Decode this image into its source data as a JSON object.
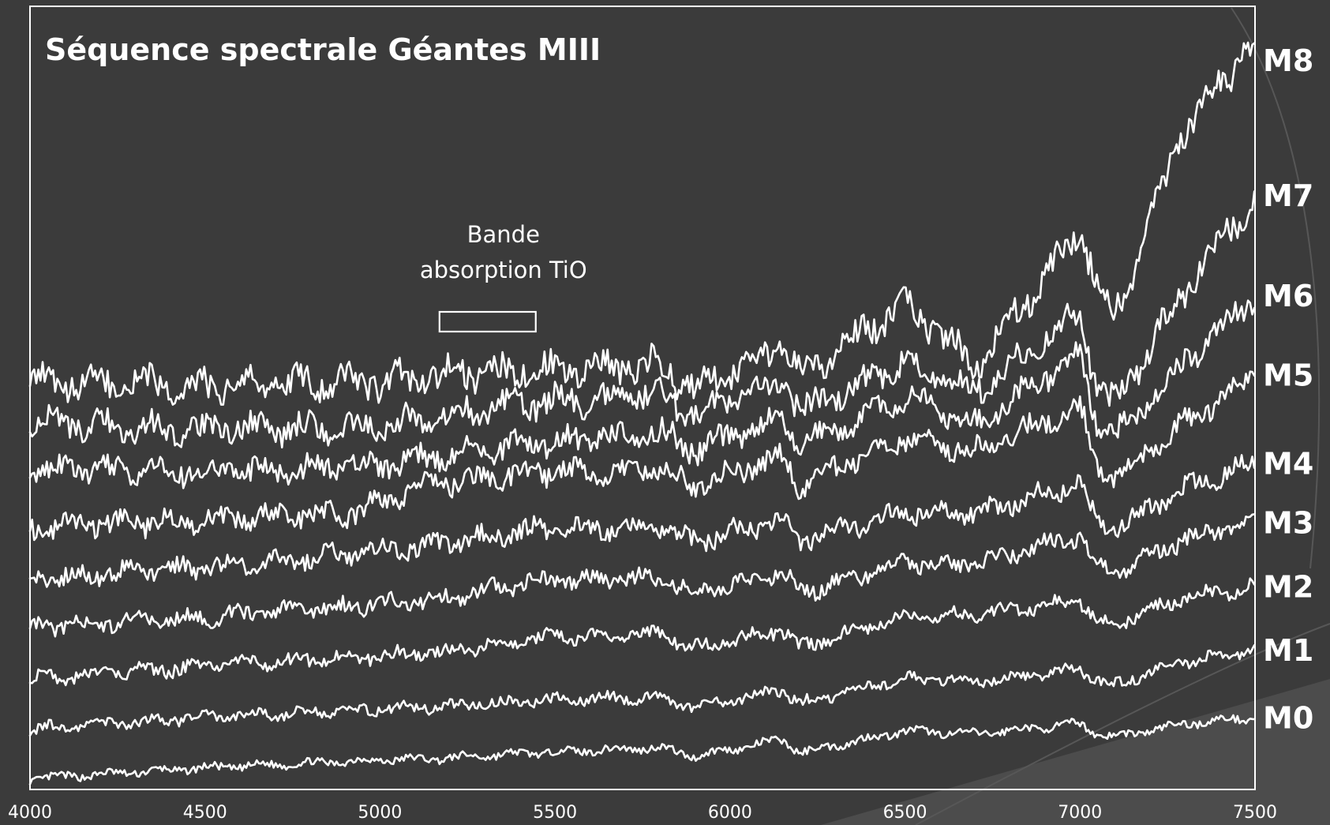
{
  "chart_data": {
    "type": "line",
    "title": "Séquence spectrale Géantes MIII",
    "xlabel": "",
    "ylabel": "",
    "xlim": [
      4000,
      7500
    ],
    "x_ticks": [
      "4000",
      "4500",
      "5000",
      "5500",
      "6000",
      "6500",
      "7000",
      "7500"
    ],
    "grid": false,
    "colors": {
      "background": "#3b3b3b",
      "line": "#ffffff"
    },
    "annotation": {
      "lines": [
        "Bande",
        "absorption TiO"
      ],
      "x_range": [
        5170,
        5445
      ]
    },
    "series": [
      {
        "name": "M0",
        "offset": 0.0,
        "points": [
          [
            4000,
            0.04
          ],
          [
            4500,
            0.19
          ],
          [
            5000,
            0.3
          ],
          [
            5170,
            0.32
          ],
          [
            5445,
            0.4
          ],
          [
            5800,
            0.47
          ],
          [
            5900,
            0.35
          ],
          [
            6150,
            0.58
          ],
          [
            6200,
            0.4
          ],
          [
            6500,
            0.7
          ],
          [
            6700,
            0.66
          ],
          [
            7000,
            0.8
          ],
          [
            7050,
            0.66
          ],
          [
            7100,
            0.62
          ],
          [
            7300,
            0.8
          ],
          [
            7500,
            0.89
          ]
        ]
      },
      {
        "name": "M1",
        "offset": 0.0,
        "points": [
          [
            4000,
            0.73
          ],
          [
            4500,
            0.89
          ],
          [
            5000,
            1.0
          ],
          [
            5170,
            1.03
          ],
          [
            5445,
            1.12
          ],
          [
            5800,
            1.17
          ],
          [
            5900,
            1.02
          ],
          [
            6150,
            1.26
          ],
          [
            6200,
            1.08
          ],
          [
            6500,
            1.42
          ],
          [
            6700,
            1.38
          ],
          [
            7000,
            1.55
          ],
          [
            7050,
            1.4
          ],
          [
            7100,
            1.34
          ],
          [
            7300,
            1.66
          ],
          [
            7500,
            1.82
          ]
        ]
      },
      {
        "name": "M2",
        "offset": 0.0,
        "points": [
          [
            4000,
            1.43
          ],
          [
            4500,
            1.59
          ],
          [
            5000,
            1.74
          ],
          [
            5170,
            1.78
          ],
          [
            5445,
            1.98
          ],
          [
            5800,
            2.04
          ],
          [
            5900,
            1.85
          ],
          [
            6150,
            2.1
          ],
          [
            6200,
            1.84
          ],
          [
            6500,
            2.3
          ],
          [
            6700,
            2.3
          ],
          [
            7000,
            2.5
          ],
          [
            7050,
            2.22
          ],
          [
            7100,
            2.18
          ],
          [
            7300,
            2.53
          ],
          [
            7500,
            2.7
          ]
        ]
      },
      {
        "name": "M3",
        "offset": 0.0,
        "points": [
          [
            4000,
            2.13
          ],
          [
            4500,
            2.27
          ],
          [
            5000,
            2.45
          ],
          [
            5170,
            2.52
          ],
          [
            5445,
            2.78
          ],
          [
            5800,
            2.8
          ],
          [
            5900,
            2.6
          ],
          [
            6150,
            2.9
          ],
          [
            6200,
            2.6
          ],
          [
            6500,
            3.02
          ],
          [
            6700,
            3.0
          ],
          [
            7000,
            3.4
          ],
          [
            7050,
            2.95
          ],
          [
            7100,
            2.88
          ],
          [
            7300,
            3.35
          ],
          [
            7500,
            3.58
          ]
        ]
      },
      {
        "name": "M4",
        "offset": 0.0,
        "points": [
          [
            4000,
            2.8
          ],
          [
            4500,
            2.96
          ],
          [
            5000,
            3.18
          ],
          [
            5170,
            3.28
          ],
          [
            5445,
            3.48
          ],
          [
            5800,
            3.5
          ],
          [
            5900,
            3.32
          ],
          [
            6150,
            3.62
          ],
          [
            6200,
            3.32
          ],
          [
            6500,
            3.72
          ],
          [
            6700,
            3.71
          ],
          [
            7000,
            4.12
          ],
          [
            7050,
            3.55
          ],
          [
            7100,
            3.5
          ],
          [
            7300,
            4.05
          ],
          [
            7500,
            4.4
          ]
        ]
      },
      {
        "name": "M5",
        "offset": 0.0,
        "points": [
          [
            4000,
            3.5
          ],
          [
            4500,
            3.62
          ],
          [
            4950,
            3.72
          ],
          [
            5000,
            3.88
          ],
          [
            5170,
            4.12
          ],
          [
            5445,
            4.27
          ],
          [
            5800,
            4.3
          ],
          [
            5900,
            4.1
          ],
          [
            6150,
            4.48
          ],
          [
            6200,
            4.08
          ],
          [
            6500,
            4.75
          ],
          [
            6700,
            4.57
          ],
          [
            7000,
            5.18
          ],
          [
            7050,
            4.35
          ],
          [
            7100,
            4.2
          ],
          [
            7300,
            4.95
          ],
          [
            7500,
            5.62
          ]
        ]
      },
      {
        "name": "M6",
        "offset": 0.0,
        "points": [
          [
            4000,
            4.31
          ],
          [
            4500,
            4.29
          ],
          [
            5000,
            4.35
          ],
          [
            5170,
            4.5
          ],
          [
            5445,
            4.68
          ],
          [
            5800,
            4.82
          ],
          [
            5900,
            4.58
          ],
          [
            6150,
            5.0
          ],
          [
            6200,
            4.64
          ],
          [
            6500,
            5.3
          ],
          [
            6700,
            4.92
          ],
          [
            7000,
            5.93
          ],
          [
            7050,
            4.95
          ],
          [
            7100,
            4.78
          ],
          [
            7300,
            5.8
          ],
          [
            7500,
            6.72
          ]
        ]
      },
      {
        "name": "M7",
        "offset": 0.0,
        "points": [
          [
            4000,
            4.95
          ],
          [
            4500,
            4.86
          ],
          [
            5000,
            4.9
          ],
          [
            5170,
            5.05
          ],
          [
            5445,
            5.24
          ],
          [
            5800,
            5.34
          ],
          [
            5900,
            5.06
          ],
          [
            6150,
            5.53
          ],
          [
            6200,
            5.12
          ],
          [
            6500,
            5.77
          ],
          [
            6700,
            5.38
          ],
          [
            7000,
            6.5
          ],
          [
            7050,
            5.4
          ],
          [
            7100,
            5.22
          ],
          [
            7300,
            6.8
          ],
          [
            7500,
            8.1
          ]
        ]
      },
      {
        "name": "M8",
        "offset": 0.0,
        "points": [
          [
            4000,
            5.5
          ],
          [
            4500,
            5.48
          ],
          [
            5000,
            5.52
          ],
          [
            5170,
            5.62
          ],
          [
            5445,
            5.7
          ],
          [
            5800,
            5.76
          ],
          [
            5900,
            5.4
          ],
          [
            6150,
            6.02
          ],
          [
            6200,
            5.58
          ],
          [
            6500,
            6.62
          ],
          [
            6700,
            5.78
          ],
          [
            7000,
            7.58
          ],
          [
            7050,
            6.9
          ],
          [
            7100,
            6.45
          ],
          [
            7300,
            9.05
          ],
          [
            7500,
            10.25
          ]
        ]
      }
    ]
  }
}
